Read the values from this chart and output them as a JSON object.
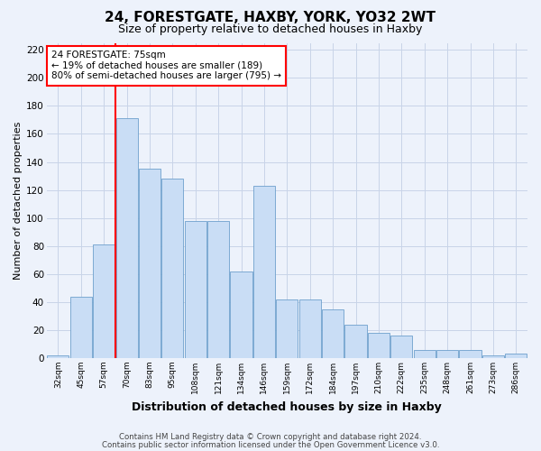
{
  "title1": "24, FORESTGATE, HAXBY, YORK, YO32 2WT",
  "title2": "Size of property relative to detached houses in Haxby",
  "xlabel": "Distribution of detached houses by size in Haxby",
  "ylabel": "Number of detached properties",
  "categories": [
    "32sqm",
    "45sqm",
    "57sqm",
    "70sqm",
    "83sqm",
    "95sqm",
    "108sqm",
    "121sqm",
    "134sqm",
    "146sqm",
    "159sqm",
    "172sqm",
    "184sqm",
    "197sqm",
    "210sqm",
    "222sqm",
    "235sqm",
    "248sqm",
    "261sqm",
    "273sqm",
    "286sqm"
  ],
  "values": [
    2,
    44,
    81,
    171,
    135,
    128,
    98,
    98,
    62,
    123,
    42,
    42,
    35,
    24,
    18,
    16,
    6,
    6,
    6,
    2,
    3
  ],
  "bar_color": "#c9ddf5",
  "bar_edge_color": "#6ea0cc",
  "grid_color": "#c8d4e8",
  "vline_x": 2.5,
  "vline_color": "red",
  "annotation_text": "24 FORESTGATE: 75sqm\n← 19% of detached houses are smaller (189)\n80% of semi-detached houses are larger (795) →",
  "annotation_box_color": "white",
  "annotation_box_edge": "red",
  "footer1": "Contains HM Land Registry data © Crown copyright and database right 2024.",
  "footer2": "Contains public sector information licensed under the Open Government Licence v3.0.",
  "ylim": [
    0,
    225
  ],
  "yticks": [
    0,
    20,
    40,
    60,
    80,
    100,
    120,
    140,
    160,
    180,
    200,
    220
  ],
  "background_color": "#edf2fb",
  "plot_bg_color": "#edf2fb",
  "title1_fontsize": 11,
  "title2_fontsize": 9,
  "xlabel_fontsize": 9,
  "ylabel_fontsize": 8
}
